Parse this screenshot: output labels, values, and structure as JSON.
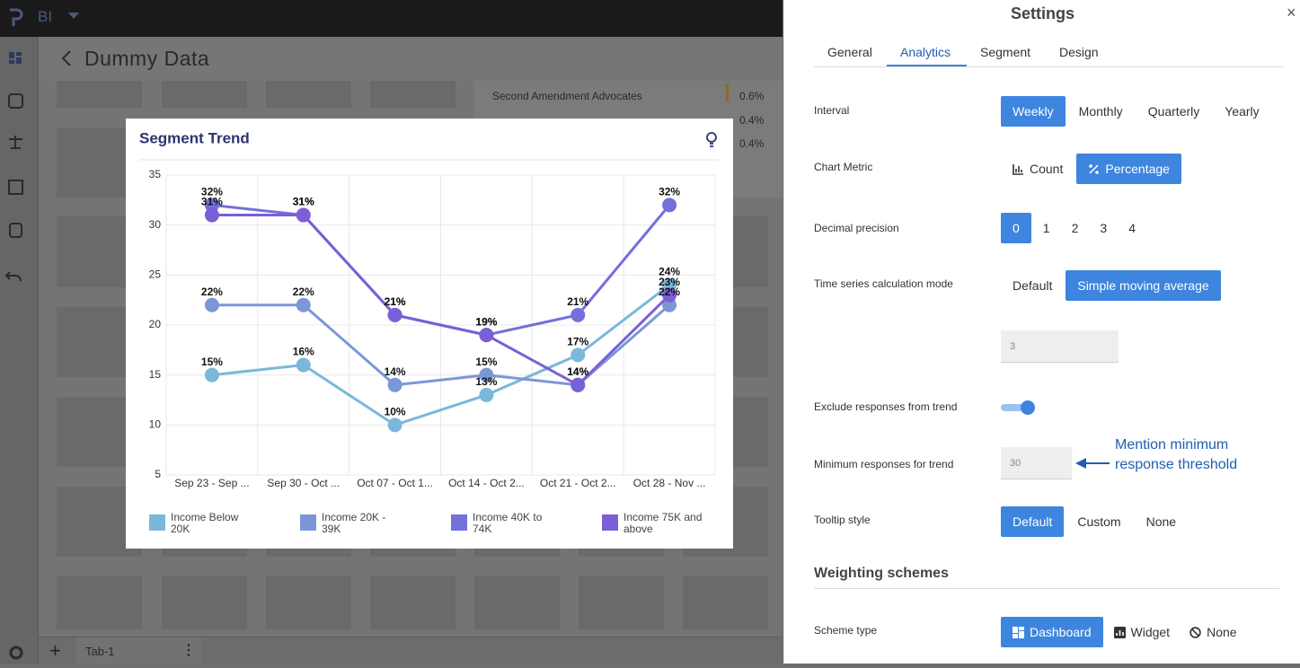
{
  "app": {
    "logo": "BI",
    "page_title": "Dummy Data",
    "background_table": [
      {
        "label": "Second Amendment Advocates",
        "value": "0.6%"
      },
      {
        "value": "0.4%"
      },
      {
        "value": "0.4%"
      }
    ],
    "tab": "Tab-1"
  },
  "chart_data": {
    "type": "line",
    "title": "Segment Trend",
    "categories": [
      "Sep 23 - Sep ...",
      "Sep 30 - Oct ...",
      "Oct 07 - Oct 1...",
      "Oct 14 - Oct 2...",
      "Oct 21 - Oct 2...",
      "Oct 28 - Nov ..."
    ],
    "series": [
      {
        "name": "Income Below 20K",
        "color": "#7ab8da",
        "values": [
          15,
          16,
          10,
          13,
          17,
          24
        ],
        "value_labels": [
          "15%",
          "16%",
          "10%",
          "13%",
          "17%",
          "24%"
        ]
      },
      {
        "name": "Income 20K - 39K",
        "color": "#7b97d8",
        "values": [
          22,
          22,
          14,
          15,
          14,
          22
        ],
        "value_labels": [
          "22%",
          "22%",
          "14%",
          "15%",
          "14%",
          "22%"
        ]
      },
      {
        "name": "Income 40K to 74K",
        "color": "#7370db",
        "values": [
          32,
          31,
          21,
          19,
          21,
          32
        ],
        "value_labels": [
          "32%",
          "31%",
          "21%",
          "19%",
          "21%",
          "32%"
        ]
      },
      {
        "name": "Income 75K and above",
        "color": "#7a5fd6",
        "values": [
          31,
          31,
          21,
          19,
          14,
          23
        ],
        "value_labels": [
          "31%",
          "31%",
          "21%",
          "19%",
          "14%",
          "23%"
        ]
      }
    ],
    "ylim": [
      5,
      35
    ],
    "yticks": [
      5,
      10,
      15,
      20,
      25,
      30,
      35
    ],
    "grid": true
  },
  "settings": {
    "title": "Settings",
    "tabs": [
      "General",
      "Analytics",
      "Segment",
      "Design"
    ],
    "active_tab": "Analytics",
    "interval": {
      "label": "Interval",
      "options": [
        "Weekly",
        "Monthly",
        "Quarterly",
        "Yearly"
      ],
      "selected": "Weekly"
    },
    "chart_metric": {
      "label": "Chart Metric",
      "options": [
        "Count",
        "Percentage"
      ],
      "selected": "Percentage"
    },
    "decimal_precision": {
      "label": "Decimal precision",
      "options": [
        0,
        1,
        2,
        3,
        4
      ],
      "selected": 0
    },
    "time_series": {
      "label": "Time series calculation mode",
      "options": [
        "Default",
        "Simple moving average"
      ],
      "selected": "Simple moving average",
      "window": 3
    },
    "exclude": {
      "label": "Exclude responses from trend",
      "enabled": true
    },
    "minimum": {
      "label": "Minimum responses for trend",
      "value": 30,
      "annotation": "Mention minimum response threshold"
    },
    "tooltip": {
      "label": "Tooltip style",
      "options": [
        "Default",
        "Custom",
        "None"
      ],
      "selected": "Default"
    },
    "weighting_heading": "Weighting schemes",
    "scheme_type": {
      "label": "Scheme type",
      "options": [
        "Dashboard",
        "Widget",
        "None"
      ],
      "selected": "Dashboard"
    }
  }
}
